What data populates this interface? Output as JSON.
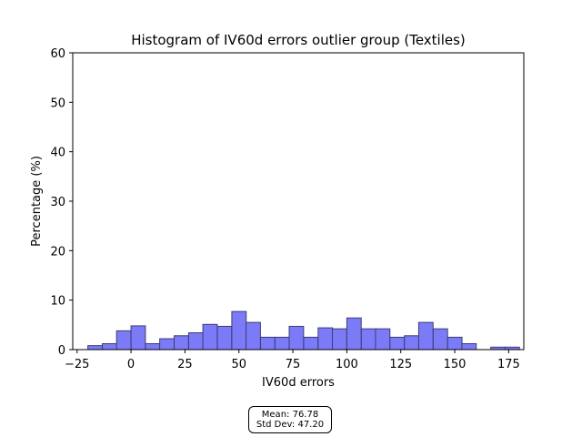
{
  "chart_data": {
    "type": "bar",
    "title": "Histogram of IV60d errors outlier group (Textiles)",
    "xlabel": "IV60d errors",
    "ylabel": "Percentage (%)",
    "xlim": [
      -27,
      182
    ],
    "ylim": [
      0,
      60
    ],
    "xticks": [
      -25,
      0,
      25,
      50,
      75,
      100,
      125,
      150,
      175
    ],
    "yticks": [
      0,
      10,
      20,
      30,
      40,
      50,
      60
    ],
    "grid": false,
    "bar_color": "#7b7bf7",
    "edge_color": "#3c3c78",
    "bin_width": 6.67,
    "bins": [
      {
        "x": -20.0,
        "value": 0.8
      },
      {
        "x": -13.3,
        "value": 1.2
      },
      {
        "x": -6.7,
        "value": 3.8
      },
      {
        "x": 0.0,
        "value": 4.8
      },
      {
        "x": 6.7,
        "value": 1.2
      },
      {
        "x": 13.3,
        "value": 2.2
      },
      {
        "x": 20.0,
        "value": 2.8
      },
      {
        "x": 26.7,
        "value": 3.4
      },
      {
        "x": 33.3,
        "value": 5.1
      },
      {
        "x": 40.0,
        "value": 4.7
      },
      {
        "x": 46.7,
        "value": 7.7
      },
      {
        "x": 53.3,
        "value": 5.5
      },
      {
        "x": 60.0,
        "value": 2.5
      },
      {
        "x": 66.7,
        "value": 2.5
      },
      {
        "x": 73.3,
        "value": 4.7
      },
      {
        "x": 80.0,
        "value": 2.5
      },
      {
        "x": 86.7,
        "value": 4.4
      },
      {
        "x": 93.3,
        "value": 4.2
      },
      {
        "x": 100.0,
        "value": 6.4
      },
      {
        "x": 106.7,
        "value": 4.2
      },
      {
        "x": 113.3,
        "value": 4.2
      },
      {
        "x": 120.0,
        "value": 2.5
      },
      {
        "x": 126.7,
        "value": 2.8
      },
      {
        "x": 133.3,
        "value": 5.5
      },
      {
        "x": 140.0,
        "value": 4.2
      },
      {
        "x": 146.7,
        "value": 2.5
      },
      {
        "x": 153.3,
        "value": 1.2
      },
      {
        "x": 166.7,
        "value": 0.5
      },
      {
        "x": 173.3,
        "value": 0.5
      }
    ]
  },
  "stats": {
    "mean_label": "Mean: 76.78",
    "std_label": "Std Dev: 47.20"
  }
}
